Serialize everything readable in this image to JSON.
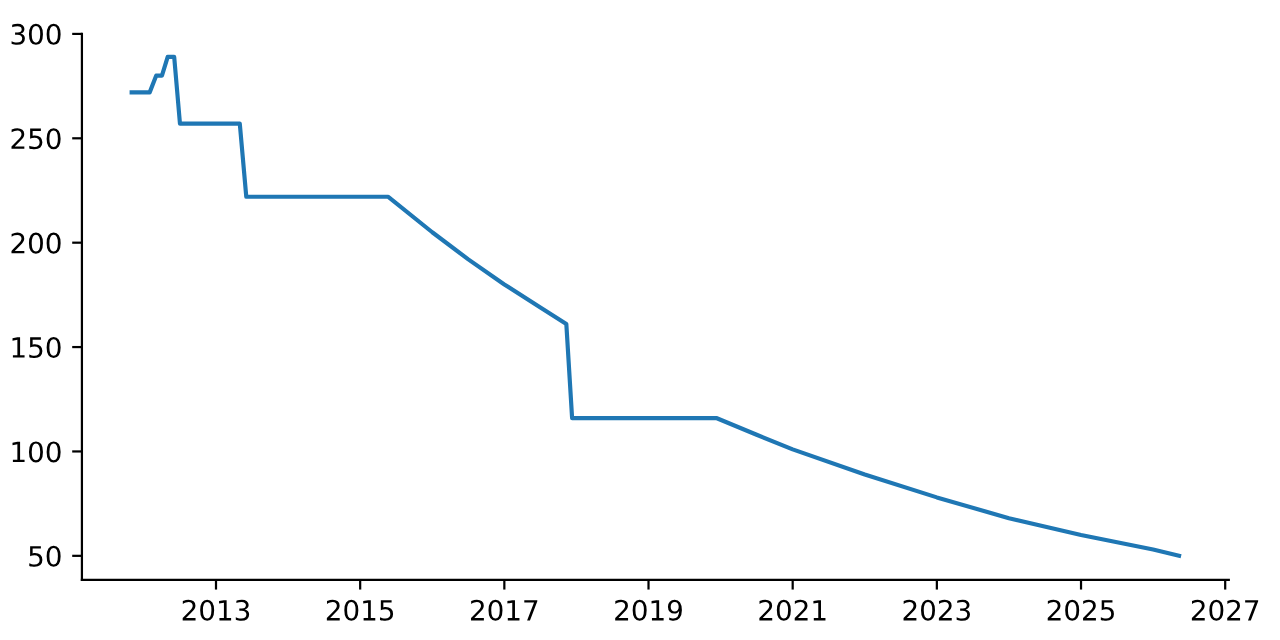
{
  "chart_data": {
    "type": "line",
    "x": [
      2011.83,
      2012.08,
      2012.17,
      2012.25,
      2012.33,
      2012.42,
      2012.5,
      2013.33,
      2013.42,
      2015.39,
      2016.0,
      2016.5,
      2017.0,
      2017.5,
      2017.86,
      2017.94,
      2019.94,
      2020.5,
      2021.0,
      2022.0,
      2023.0,
      2024.0,
      2025.0,
      2026.0,
      2026.36
    ],
    "series": [
      {
        "color": "#1f77b4",
        "values": [
          272,
          272,
          280,
          280,
          289,
          289,
          257,
          257,
          222,
          222,
          205,
          192,
          180,
          169,
          161,
          116,
          116,
          108,
          101,
          89,
          78,
          68,
          60,
          53,
          50
        ]
      }
    ],
    "xlim": [
      2011.14,
      2027.05
    ],
    "ylim": [
      38.5,
      300
    ],
    "xticks": [
      2013,
      2015,
      2017,
      2019,
      2021,
      2023,
      2025,
      2027
    ],
    "yticks": [
      50,
      100,
      150,
      200,
      250,
      300
    ],
    "grid": false,
    "legend": false,
    "marker": "none",
    "line_style": "solid"
  }
}
